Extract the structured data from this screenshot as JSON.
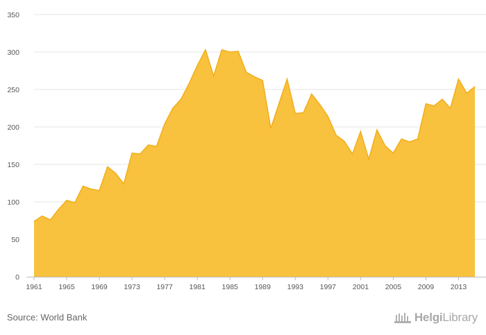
{
  "chart_data": {
    "type": "area",
    "title": "",
    "xlabel": "",
    "ylabel": "",
    "ylim": [
      0,
      350
    ],
    "yticks": [
      0,
      50,
      100,
      150,
      200,
      250,
      300,
      350
    ],
    "xtick_labels": [
      "1961",
      "1965",
      "1969",
      "1973",
      "1977",
      "1981",
      "1985",
      "1989",
      "1993",
      "1997",
      "2001",
      "2005",
      "2009",
      "2013"
    ],
    "grid": true,
    "legend": "none",
    "fill_color": "#f8c13e",
    "line_color": "#f1ae19",
    "series": [
      {
        "x": [
          1961,
          1962,
          1963,
          1964,
          1965,
          1966,
          1967,
          1968,
          1969,
          1970,
          1971,
          1972,
          1973,
          1974,
          1975,
          1976,
          1977,
          1978,
          1979,
          1980,
          1981,
          1982,
          1983,
          1984,
          1985,
          1986,
          1987,
          1988,
          1989,
          1990,
          1991,
          1992,
          1993,
          1994,
          1995,
          1996,
          1997,
          1998,
          1999,
          2000,
          2001,
          2002,
          2003,
          2004,
          2005,
          2006,
          2007,
          2008,
          2009,
          2010,
          2011,
          2012,
          2013,
          2014,
          2015
        ],
        "values": [
          74,
          81,
          76,
          90,
          102,
          99,
          121,
          117,
          115,
          147,
          138,
          124,
          165,
          164,
          176,
          174,
          204,
          225,
          237,
          258,
          282,
          303,
          268,
          303,
          300,
          301,
          273,
          267,
          262,
          198,
          231,
          264,
          218,
          219,
          244,
          230,
          214,
          189,
          181,
          164,
          194,
          157,
          196,
          175,
          165,
          184,
          180,
          184,
          231,
          228,
          237,
          225,
          264,
          245,
          254
        ]
      }
    ]
  },
  "footer": {
    "source": "Source: World Bank",
    "logo_brand": "Helgi",
    "logo_suffix": "Library"
  }
}
